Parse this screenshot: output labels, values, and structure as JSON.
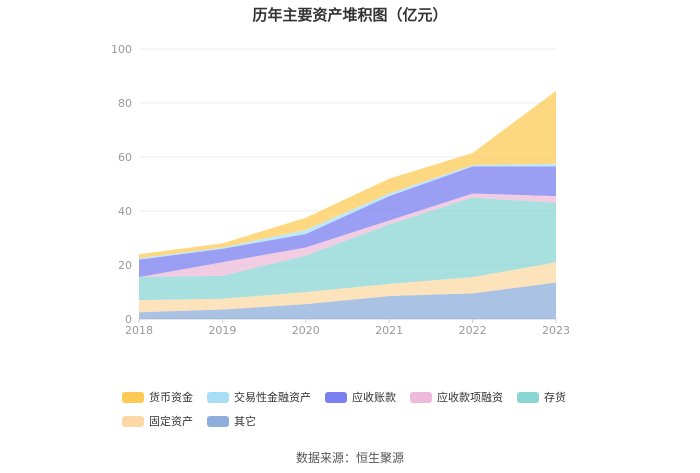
{
  "chart_data": {
    "type": "area",
    "stacked": true,
    "title": "历年主要资产堆积图（亿元）",
    "xlabel": "",
    "ylabel": "",
    "x": [
      "2018",
      "2019",
      "2020",
      "2021",
      "2022",
      "2023"
    ],
    "ylim": [
      0,
      100
    ],
    "yticks": [
      0,
      20,
      40,
      60,
      80,
      100
    ],
    "grid": true,
    "legend_position": "bottom",
    "series": [
      {
        "name": "其它",
        "color": "#8eaedb",
        "values": [
          2.5,
          3.5,
          5.5,
          8.5,
          9.5,
          13.5
        ]
      },
      {
        "name": "固定资产",
        "color": "#fcd9a4",
        "values": [
          4.5,
          4.0,
          4.5,
          4.5,
          6.0,
          7.5
        ]
      },
      {
        "name": "存货",
        "color": "#8ad6d4",
        "values": [
          8.5,
          8.5,
          13.5,
          22.0,
          29.5,
          22.0
        ]
      },
      {
        "name": "应收款项融资",
        "color": "#edbbd9",
        "values": [
          0.0,
          5.0,
          3.0,
          1.5,
          1.5,
          2.5
        ]
      },
      {
        "name": "应收账款",
        "color": "#7a7ff0",
        "values": [
          6.5,
          5.0,
          5.0,
          9.0,
          10.0,
          11.0
        ]
      },
      {
        "name": "交易性金融资产",
        "color": "#a8dff7",
        "values": [
          0.5,
          0.5,
          1.5,
          1.0,
          0.5,
          1.0
        ]
      },
      {
        "name": "货币资金",
        "color": "#fdcb55",
        "values": [
          1.5,
          1.5,
          4.5,
          5.5,
          4.5,
          27.0
        ]
      }
    ],
    "legend_order": [
      "货币资金",
      "交易性金融资产",
      "应收账款",
      "应收款项融资",
      "存货",
      "固定资产",
      "其它"
    ]
  },
  "source": "数据来源：恒生聚源"
}
